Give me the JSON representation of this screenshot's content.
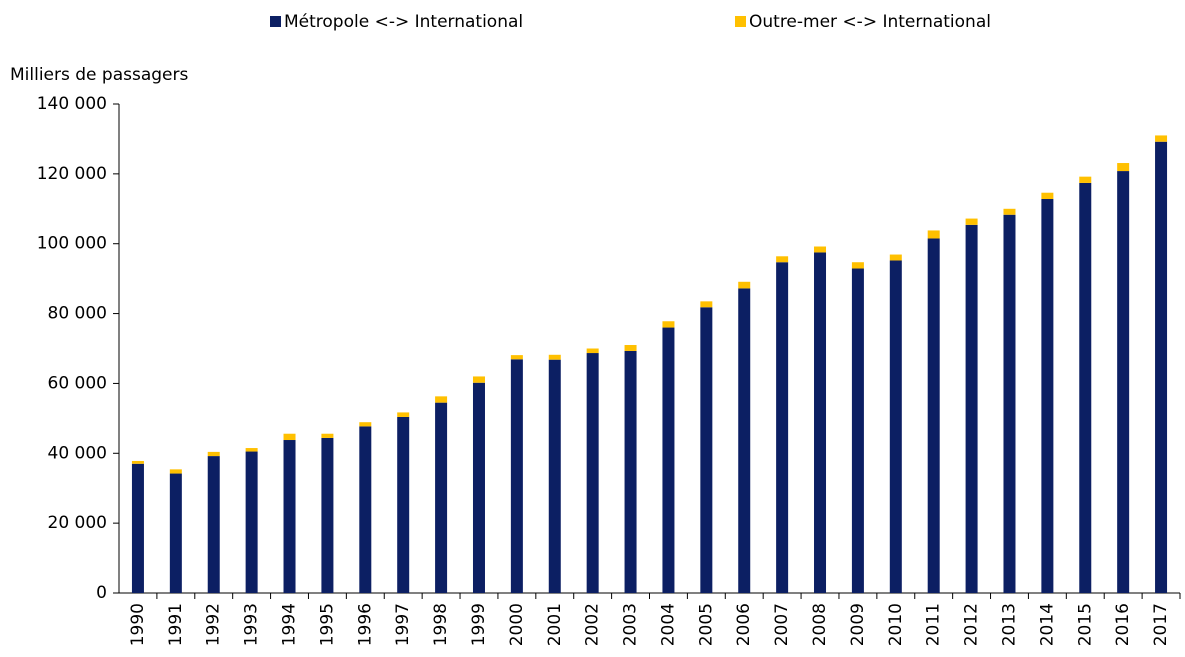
{
  "chart_data": {
    "type": "stacked_bar",
    "y_axis_label": "Milliers de passagers",
    "categories": [
      "1990",
      "1991",
      "1992",
      "1993",
      "1994",
      "1995",
      "1996",
      "1997",
      "1998",
      "1999",
      "2000",
      "2001",
      "2002",
      "2003",
      "2004",
      "2005",
      "2006",
      "2007",
      "2008",
      "2009",
      "2010",
      "2011",
      "2012",
      "2013",
      "2014",
      "2015",
      "2016",
      "2017"
    ],
    "series": [
      {
        "name": "Métropole <-> International",
        "color": "#0c1f63",
        "values": [
          37000,
          34200,
          39200,
          40500,
          43800,
          44400,
          47700,
          50400,
          54500,
          60200,
          66900,
          66800,
          68700,
          69300,
          76000,
          81800,
          87200,
          94700,
          97500,
          92900,
          95200,
          101500,
          105400,
          108300,
          112800,
          117400,
          120800,
          129200
        ]
      },
      {
        "name": "Outre-mer <-> International",
        "color": "#ffc000",
        "values": [
          800,
          1200,
          1200,
          1000,
          1800,
          1200,
          1200,
          1300,
          1800,
          1800,
          1200,
          1400,
          1300,
          1700,
          1800,
          1700,
          1900,
          1700,
          1700,
          1800,
          1700,
          2300,
          1800,
          1700,
          1800,
          1800,
          2300,
          1800
        ]
      }
    ],
    "ylim": [
      0,
      140000
    ],
    "yticks": [
      0,
      {
        "value": 20000,
        "label": "20 000"
      },
      {
        "value": 40000,
        "label": "40 000"
      },
      {
        "value": 60000,
        "label": "60 000"
      },
      {
        "value": 80000,
        "label": "80 000"
      },
      {
        "value": 100000,
        "label": "100 000"
      },
      {
        "value": 120000,
        "label": "120 000"
      },
      {
        "value": 140000,
        "label": "140 000"
      }
    ],
    "legend": "top"
  }
}
